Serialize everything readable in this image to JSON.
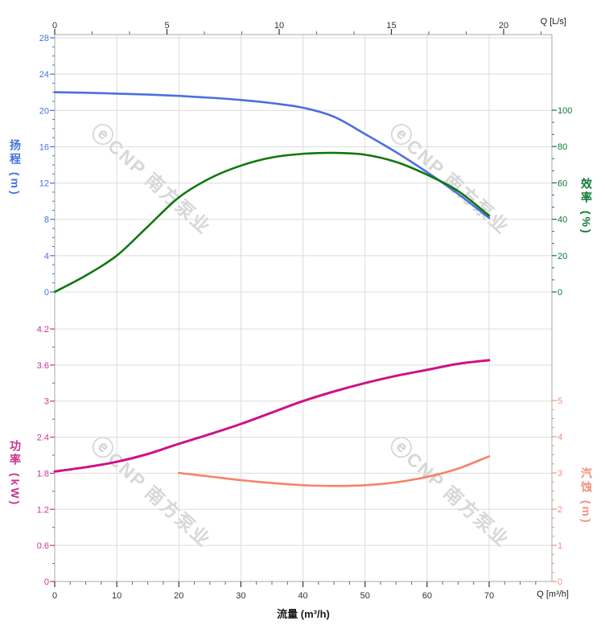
{
  "watermark": {
    "logo": "ⓔ",
    "text": "CNP 南方泵业",
    "color": "#d7d7d7",
    "angle_deg": 42
  },
  "chart_data": [
    {
      "type": "line",
      "name": "pump-head-efficiency-chart",
      "grid": true,
      "x_axis_top": {
        "unit": "Q [L/s]",
        "ticks": [
          0,
          5,
          10,
          15,
          20
        ],
        "minor_divisions": 3,
        "range": [
          0,
          22.15
        ],
        "color": "#333333"
      },
      "y_axis_left": {
        "label": "扬程 (m)",
        "ticks": [
          0,
          4,
          8,
          12,
          16,
          20,
          24,
          28
        ],
        "tick_labels": [
          "0",
          "4",
          "8",
          "12",
          "16",
          "20",
          "24",
          "28"
        ],
        "minor_divisions": 4,
        "range": [
          0,
          28
        ],
        "color": "#4571e0"
      },
      "y_axis_right": {
        "label": "效率 (%)",
        "ticks": [
          0,
          20,
          40,
          60,
          80,
          100
        ],
        "tick_labels": [
          "0",
          "20",
          "40",
          "60",
          "80",
          "100"
        ],
        "minor_divisions": 3,
        "range": [
          0,
          100
        ],
        "color": "#0d7a35"
      },
      "series": [
        {
          "name": "扬程",
          "axis": "left",
          "color": "#4a6fdf",
          "width": 2.6,
          "x": [
            0,
            5,
            10,
            15,
            20,
            25,
            30,
            35,
            40,
            45,
            50,
            55,
            60,
            65,
            70
          ],
          "y": [
            22.0,
            21.95,
            21.85,
            21.75,
            21.6,
            21.4,
            21.15,
            20.8,
            20.3,
            19.3,
            17.4,
            15.4,
            13.2,
            10.8,
            8.15
          ]
        },
        {
          "name": "效率",
          "axis": "right",
          "color": "#10770f",
          "width": 2.6,
          "x": [
            0,
            5,
            10,
            15,
            20,
            25,
            30,
            35,
            40,
            45,
            50,
            55,
            60,
            65,
            70
          ],
          "y": [
            0,
            9,
            20,
            36,
            52,
            62.5,
            69.5,
            74,
            76,
            76.5,
            75.5,
            71.5,
            64.5,
            55.5,
            42
          ]
        }
      ]
    },
    {
      "type": "line",
      "name": "pump-power-npsh-chart",
      "grid": true,
      "x_axis_bottom": {
        "unit": "Q [m³/h]",
        "title": "流量 (m³/h)",
        "ticks": [
          0,
          10,
          20,
          30,
          40,
          50,
          60,
          70
        ],
        "minor_divisions": 4,
        "range": [
          0,
          80.1
        ],
        "color": "#333333"
      },
      "y_axis_left": {
        "label": "功率 (kW)",
        "ticks": [
          0,
          0.6,
          1.2,
          1.8,
          2.4,
          3,
          3.6,
          4.2
        ],
        "tick_labels": [
          "0",
          "0.6",
          "1.2",
          "1.8",
          "2.4",
          "3",
          "3.6",
          "4.2"
        ],
        "minor_divisions": 2,
        "range": [
          0,
          4.2
        ],
        "color": "#c9348f"
      },
      "y_axis_right": {
        "label": "汽蚀 (m)",
        "ticks": [
          0,
          1,
          2,
          3,
          4,
          5
        ],
        "tick_labels": [
          "0",
          "1",
          "2",
          "3",
          "4",
          "5"
        ],
        "minor_divisions": 4,
        "range": [
          0,
          5
        ],
        "color": "#f4907d"
      },
      "series": [
        {
          "name": "功率",
          "axis": "left",
          "color": "#cf1286",
          "width": 3,
          "x": [
            0,
            5,
            10,
            15,
            20,
            25,
            30,
            35,
            40,
            45,
            50,
            55,
            60,
            65,
            70
          ],
          "y": [
            1.83,
            1.9,
            1.99,
            2.12,
            2.29,
            2.45,
            2.62,
            2.81,
            3.0,
            3.16,
            3.3,
            3.42,
            3.52,
            3.62,
            3.68
          ]
        },
        {
          "name": "汽蚀",
          "axis": "right",
          "color": "#f5826b",
          "width": 2.6,
          "x": [
            20,
            25,
            30,
            35,
            40,
            45,
            50,
            55,
            60,
            65,
            70
          ],
          "y": [
            3.0,
            2.9,
            2.8,
            2.72,
            2.66,
            2.64,
            2.66,
            2.74,
            2.89,
            3.12,
            3.46
          ]
        }
      ]
    }
  ]
}
